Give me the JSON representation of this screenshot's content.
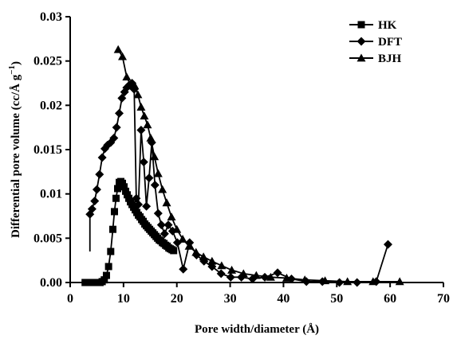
{
  "chart_data": {
    "type": "line",
    "title": "",
    "xlabel": "Pore width/diameter (Å)",
    "ylabel": "Differential pore volume (cc/Å g",
    "ylabel_sup": "−1",
    "ylabel_end": ")",
    "xlim": [
      0,
      70
    ],
    "ylim": [
      0,
      0.03
    ],
    "x_ticks": [
      0,
      10,
      20,
      30,
      40,
      50,
      60,
      70
    ],
    "x_tick_labels": [
      "0",
      "10",
      "20",
      "30",
      "40",
      "50",
      "60",
      "70"
    ],
    "y_ticks": [
      0,
      0.005,
      0.01,
      0.015,
      0.02,
      0.025,
      0.03
    ],
    "y_tick_labels": [
      "0.00",
      "0.005",
      "0.01",
      "0.015",
      "0.02",
      "0.025",
      "0.03"
    ],
    "grid": false,
    "legend_position": "top-right",
    "series": [
      {
        "name": "HK",
        "marker": "square",
        "x": [
          2.8,
          3.2,
          3.6,
          4.0,
          4.4,
          4.8,
          5.2,
          5.6,
          6.0,
          6.4,
          6.8,
          7.2,
          7.6,
          8.0,
          8.3,
          8.6,
          8.9,
          9.2,
          9.5,
          9.8,
          10.1,
          10.4,
          10.7,
          11.0,
          11.3,
          11.6,
          11.9,
          12.2,
          12.5,
          12.8,
          13.1,
          13.4,
          13.7,
          14.0,
          14.3,
          14.6,
          14.9,
          15.2,
          15.5,
          15.8,
          16.1,
          16.4,
          16.7,
          17.0,
          17.3,
          17.6,
          17.9,
          18.2,
          18.5,
          18.8,
          19.1,
          19.4
        ],
        "y": [
          0.0,
          0.0,
          0.0,
          0.0,
          0.0,
          0.0,
          0.0,
          0.0,
          0.0001,
          0.0003,
          0.0008,
          0.0018,
          0.0035,
          0.006,
          0.008,
          0.0095,
          0.0106,
          0.0113,
          0.0114,
          0.0112,
          0.0108,
          0.0103,
          0.0099,
          0.0095,
          0.0091,
          0.0088,
          0.0085,
          0.0082,
          0.0079,
          0.0076,
          0.0074,
          0.0071,
          0.0069,
          0.0066,
          0.0064,
          0.0062,
          0.006,
          0.0058,
          0.0056,
          0.0054,
          0.0052,
          0.005,
          0.0048,
          0.0047,
          0.0045,
          0.0044,
          0.0042,
          0.0041,
          0.0039,
          0.0038,
          0.0037,
          0.0036
        ]
      },
      {
        "name": "DFT",
        "marker": "diamond",
        "x": [
          3.7,
          4.1,
          4.6,
          5.0,
          5.5,
          6.0,
          6.5,
          7.0,
          7.6,
          8.2,
          8.7,
          9.2,
          9.7,
          10.2,
          10.6,
          11.1,
          11.6,
          12.0,
          12.4,
          12.8,
          13.3,
          13.8,
          14.3,
          14.8,
          15.3,
          15.9,
          16.5,
          17.1,
          17.7,
          18.4,
          19.2,
          20.1,
          21.2,
          22.4,
          23.7,
          25.1,
          26.6,
          28.3,
          30.1,
          32.1,
          34.2,
          36.5,
          38.9,
          41.5,
          44.3,
          47.3,
          50.5,
          53.8,
          57.4,
          59.6
        ],
        "y": [
          0.0077,
          0.0083,
          0.0092,
          0.0105,
          0.0122,
          0.0141,
          0.0151,
          0.0155,
          0.0158,
          0.0163,
          0.0175,
          0.0191,
          0.0208,
          0.0215,
          0.022,
          0.0223,
          0.0225,
          0.0218,
          0.0095,
          0.0088,
          0.0172,
          0.0136,
          0.0086,
          0.0118,
          0.0158,
          0.011,
          0.0078,
          0.0065,
          0.0055,
          0.0065,
          0.0058,
          0.0045,
          0.0015,
          0.0045,
          0.0031,
          0.0024,
          0.0018,
          0.001,
          0.0006,
          0.0006,
          0.0004,
          0.0006,
          0.0011,
          0.0004,
          0.0001,
          0.0001,
          0.0,
          0.0,
          0.0001,
          0.0043
        ]
      },
      {
        "name": "BJH",
        "marker": "triangle",
        "x": [
          9.0,
          9.8,
          10.6,
          11.4,
          12.1,
          12.7,
          13.3,
          13.9,
          14.5,
          15.1,
          15.8,
          16.5,
          17.3,
          18.1,
          19.0,
          20.0,
          21.1,
          22.3,
          23.6,
          25.0,
          26.6,
          28.4,
          30.3,
          32.5,
          34.9,
          37.6,
          40.6,
          44.0,
          47.8,
          52.0,
          56.8,
          61.8
        ],
        "y": [
          0.0263,
          0.0255,
          0.0232,
          0.0222,
          0.0222,
          0.0212,
          0.0198,
          0.0188,
          0.0178,
          0.0163,
          0.0142,
          0.0123,
          0.0105,
          0.009,
          0.0074,
          0.006,
          0.0049,
          0.0041,
          0.0034,
          0.0029,
          0.0024,
          0.0019,
          0.0014,
          0.001,
          0.0008,
          0.0006,
          0.0005,
          0.0003,
          0.0002,
          0.0001,
          0.0001,
          0.0001
        ]
      }
    ]
  }
}
